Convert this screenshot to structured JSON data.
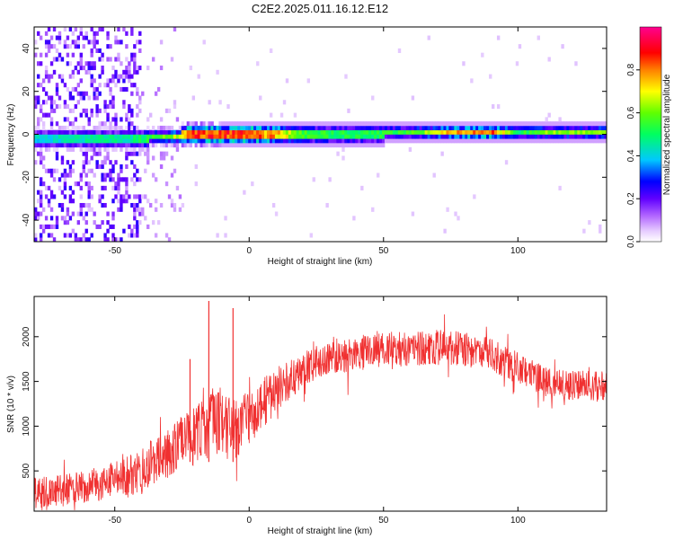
{
  "title": "C2E2.2025.011.16.12.E12",
  "colors": {
    "snr_line": "#f03030",
    "frame": "#000000",
    "background": "#ffffff"
  },
  "chart_data": [
    {
      "type": "heatmap",
      "title": "C2E2.2025.011.16.12.E12",
      "xlabel": "Height of straight line (km)",
      "ylabel": "Frequency (Hz)",
      "xlim": [
        -80,
        133
      ],
      "ylim": [
        -50,
        50
      ],
      "xticks": [
        -50,
        0,
        50,
        100
      ],
      "yticks": [
        -40,
        -20,
        0,
        20,
        40
      ],
      "colorbar": {
        "label": "Normalized spectral amplitude",
        "range": [
          0,
          1
        ],
        "ticks": [
          "0.0",
          "0.2",
          "0.4",
          "0.6",
          "0.8"
        ],
        "tick_values": [
          0,
          0.2,
          0.4,
          0.6,
          0.8
        ],
        "colormap": "white-purple-blue-cyan-green-yellow-red-magenta"
      },
      "ridge": {
        "description_values": "peak amplitude along height",
        "x": [
          -80,
          -60,
          -45,
          -30,
          -20,
          -10,
          0,
          10,
          20,
          40,
          60,
          80,
          90,
          100,
          110,
          133
        ],
        "frequency_hz": [
          -2,
          -2,
          -2,
          -1,
          0,
          0,
          0,
          0,
          0,
          0,
          1,
          1,
          1,
          1,
          1,
          1
        ],
        "amplitude": [
          0.4,
          0.45,
          0.45,
          0.6,
          0.85,
          0.85,
          0.85,
          0.75,
          0.55,
          0.5,
          0.55,
          0.8,
          0.85,
          0.5,
          0.6,
          0.6
        ]
      }
    },
    {
      "type": "line",
      "xlabel": "Height of straight line (km)",
      "ylabel": "SNR (10 * v/v)",
      "xlim": [
        -80,
        133
      ],
      "ylim": [
        50,
        2450
      ],
      "xticks": [
        -50,
        0,
        50,
        100
      ],
      "yticks": [
        500,
        1000,
        1500,
        2000
      ],
      "envelope": {
        "x": [
          -80,
          -70,
          -60,
          -50,
          -40,
          -35,
          -30,
          -25,
          -20,
          -15,
          -10,
          -5,
          0,
          5,
          10,
          15,
          20,
          25,
          30,
          40,
          50,
          60,
          70,
          80,
          90,
          100,
          110,
          120,
          133
        ],
        "mean": [
          250,
          280,
          330,
          400,
          500,
          600,
          720,
          800,
          900,
          1000,
          1050,
          950,
          1100,
          1250,
          1400,
          1520,
          1620,
          1700,
          1780,
          1820,
          1850,
          1870,
          1880,
          1860,
          1800,
          1650,
          1500,
          1450,
          1460
        ],
        "amplitude": [
          180,
          180,
          190,
          200,
          260,
          280,
          300,
          320,
          330,
          350,
          350,
          350,
          300,
          280,
          250,
          220,
          200,
          200,
          200,
          200,
          200,
          210,
          200,
          190,
          190,
          180,
          170,
          170,
          170
        ]
      },
      "spikes": [
        {
          "x": -15,
          "y": 2400
        },
        {
          "x": -6,
          "y": 2320
        },
        {
          "x": -22,
          "y": 1750
        }
      ]
    }
  ]
}
